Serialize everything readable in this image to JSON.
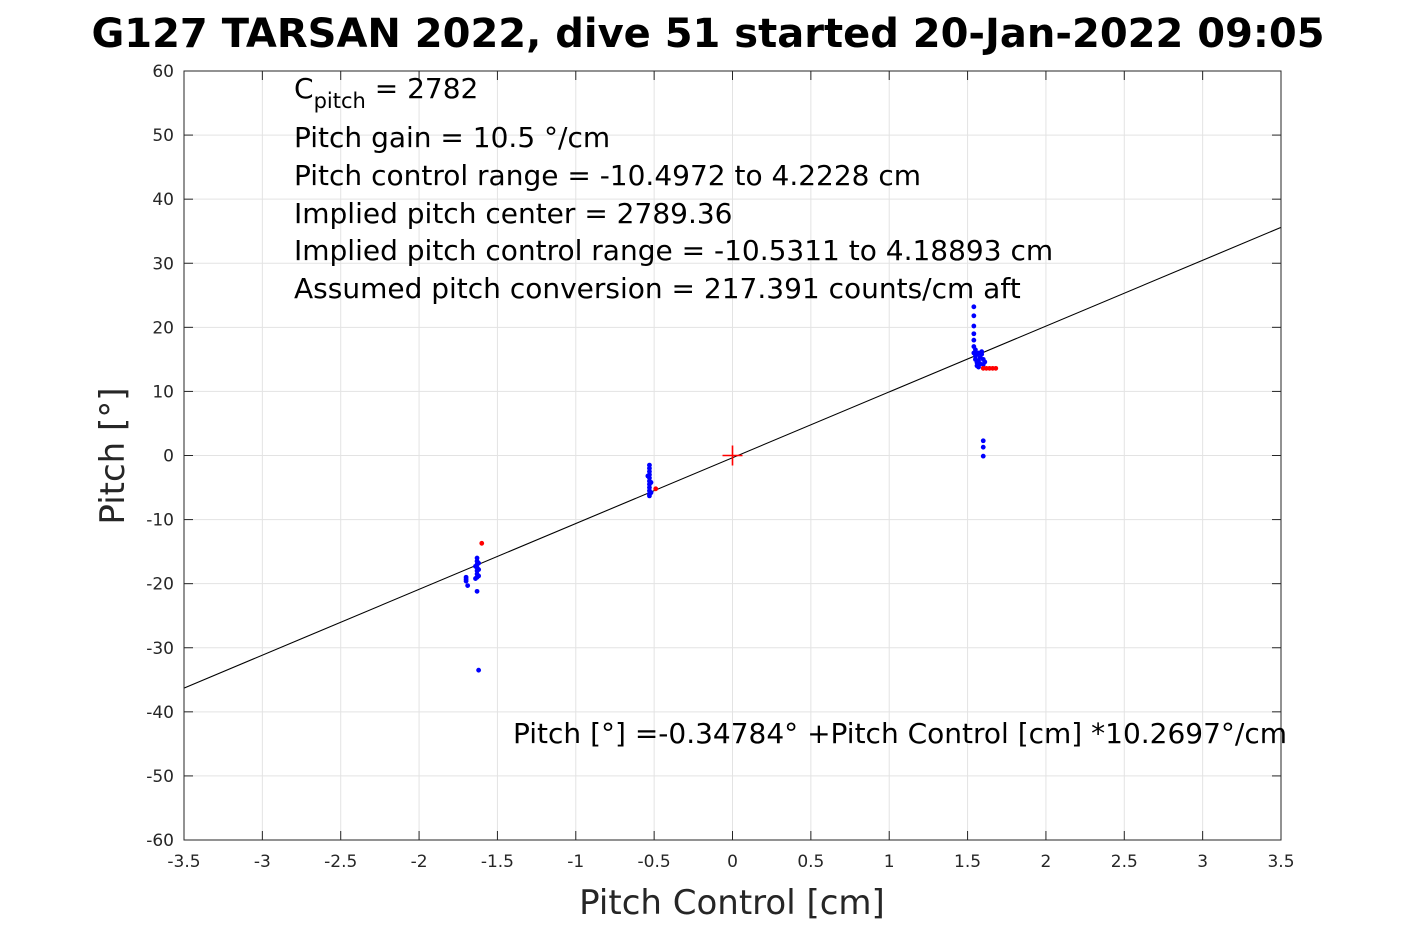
{
  "chart_data": {
    "type": "scatter",
    "title": "G127 TARSAN 2022, dive 51 started 20-Jan-2022 09:05",
    "xlabel": "Pitch Control [cm]",
    "ylabel": "Pitch [°]",
    "xlim": [
      -3.5,
      3.5
    ],
    "ylim": [
      -60,
      60
    ],
    "x_ticks": [
      -3.5,
      -3,
      -2.5,
      -2,
      -1.5,
      -1,
      -0.5,
      0,
      0.5,
      1,
      1.5,
      2,
      2.5,
      3,
      3.5
    ],
    "y_ticks": [
      60,
      50,
      40,
      30,
      20,
      10,
      0,
      -10,
      -20,
      -30,
      -40,
      -50,
      -60
    ],
    "grid": true,
    "annotations": {
      "cpitch_base": "C",
      "cpitch_sub": "pitch",
      "cpitch_value": " = 2782",
      "lines": [
        "Pitch gain = 10.5 °/cm",
        "Pitch control range = -10.4972 to 4.2228 cm",
        "Implied pitch center = 2789.36",
        "Implied pitch control range = -10.5311 to 4.18893 cm",
        "Assumed pitch conversion = 217.391 counts/cm aft"
      ],
      "fit_equation": "Pitch [°] =-0.34784° +Pitch Control [cm] *10.2697°/cm"
    },
    "fit_line": {
      "intercept": -0.34784,
      "slope": 10.2697,
      "color": "#000000"
    },
    "center_marker": {
      "x": 0,
      "y": 0,
      "color": "#ff0000"
    },
    "series": [
      {
        "color": "#0000ff",
        "points": [
          [
            -1.7,
            -19.0
          ],
          [
            -1.7,
            -19.6
          ],
          [
            -1.69,
            -20.3
          ],
          [
            -1.7,
            -19.3
          ],
          [
            -1.63,
            -16.0
          ],
          [
            -1.63,
            -16.5
          ],
          [
            -1.63,
            -17.0
          ],
          [
            -1.63,
            -17.5
          ],
          [
            -1.63,
            -18.0
          ],
          [
            -1.63,
            -18.5
          ],
          [
            -1.63,
            -19.0
          ],
          [
            -1.64,
            -19.2
          ],
          [
            -1.62,
            -16.8
          ],
          [
            -1.62,
            -17.8
          ],
          [
            -1.64,
            -17.3
          ],
          [
            -1.62,
            -18.8
          ],
          [
            -1.63,
            -21.2
          ],
          [
            -1.62,
            -33.5
          ],
          [
            -0.53,
            -1.5
          ],
          [
            -0.53,
            -2.0
          ],
          [
            -0.53,
            -2.5
          ],
          [
            -0.53,
            -3.0
          ],
          [
            -0.53,
            -3.5
          ],
          [
            -0.53,
            -4.0
          ],
          [
            -0.53,
            -4.5
          ],
          [
            -0.53,
            -5.0
          ],
          [
            -0.53,
            -5.5
          ],
          [
            -0.53,
            -6.0
          ],
          [
            -0.52,
            -4.2
          ],
          [
            -0.54,
            -3.2
          ],
          [
            -0.52,
            -5.8
          ],
          [
            -0.53,
            -6.3
          ],
          [
            1.54,
            23.2
          ],
          [
            1.54,
            21.8
          ],
          [
            1.54,
            20.2
          ],
          [
            1.54,
            19.0
          ],
          [
            1.54,
            18.0
          ],
          [
            1.54,
            17.0
          ],
          [
            1.54,
            16.0
          ],
          [
            1.55,
            15.5
          ],
          [
            1.55,
            15.0
          ],
          [
            1.56,
            14.5
          ],
          [
            1.56,
            14.0
          ],
          [
            1.57,
            13.8
          ],
          [
            1.57,
            14.8
          ],
          [
            1.58,
            15.3
          ],
          [
            1.58,
            14.3
          ],
          [
            1.59,
            15.8
          ],
          [
            1.59,
            16.2
          ],
          [
            1.6,
            15.0
          ],
          [
            1.6,
            14.2
          ],
          [
            1.61,
            14.6
          ],
          [
            1.55,
            16.5
          ],
          [
            1.56,
            15.8
          ],
          [
            1.57,
            16.0
          ],
          [
            1.6,
            2.3
          ],
          [
            1.6,
            1.3
          ],
          [
            1.6,
            -0.1
          ]
        ]
      },
      {
        "color": "#ff0000",
        "points": [
          [
            -1.6,
            -13.7
          ],
          [
            -0.49,
            -5.2
          ],
          [
            1.6,
            13.6
          ],
          [
            1.62,
            13.6
          ],
          [
            1.64,
            13.6
          ],
          [
            1.66,
            13.6
          ],
          [
            1.68,
            13.6
          ]
        ]
      }
    ]
  }
}
